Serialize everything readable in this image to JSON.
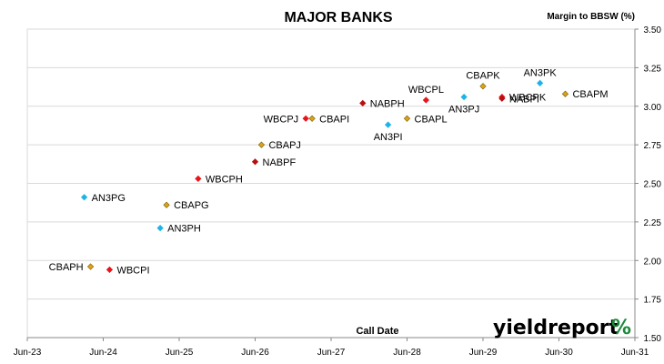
{
  "brand": {
    "name": "yieldreport",
    "symbol": "%"
  },
  "colors": {
    "ANZ": "#1cb4e8",
    "CBA": "#d9a31a",
    "NAB": "#b80f0f",
    "WBC": "#e8141a",
    "gridline": "#d9d9d9",
    "brand_green": "#1a8a3a",
    "brand_red": "#d8202a"
  },
  "chart_data": {
    "type": "scatter",
    "title": "MAJOR BANKS",
    "ylabel": "Margin to BBSW (%)",
    "xlabel": "Call Date",
    "ylim": [
      1.5,
      3.5
    ],
    "yticks": [
      "1.50",
      "1.75",
      "2.00",
      "2.25",
      "2.50",
      "2.75",
      "3.00",
      "3.25",
      "3.50"
    ],
    "xticks": [
      "Jun-23",
      "Jun-24",
      "Jun-25",
      "Jun-26",
      "Jun-27",
      "Jun-28",
      "Jun-29",
      "Jun-30",
      "Jun-31"
    ],
    "xlim": [
      "Jun-23",
      "Jun-31"
    ],
    "grid": "horizontal",
    "y_axis_position": "right",
    "points": [
      {
        "label": "AN3PG",
        "issuer": "ANZ",
        "x": "2024-03",
        "y": 2.41
      },
      {
        "label": "AN3PH",
        "issuer": "ANZ",
        "x": "2025-03",
        "y": 2.21
      },
      {
        "label": "AN3PI",
        "issuer": "ANZ",
        "x": "2028-03",
        "y": 2.88
      },
      {
        "label": "AN3PJ",
        "issuer": "ANZ",
        "x": "2029-03",
        "y": 3.06
      },
      {
        "label": "AN3PK",
        "issuer": "ANZ",
        "x": "2030-03",
        "y": 3.15
      },
      {
        "label": "CBAPH",
        "issuer": "CBA",
        "x": "2024-04",
        "y": 1.96
      },
      {
        "label": "CBAPG",
        "issuer": "CBA",
        "x": "2025-04",
        "y": 2.36
      },
      {
        "label": "CBAPJ",
        "issuer": "CBA",
        "x": "2026-07",
        "y": 2.75
      },
      {
        "label": "CBAPI",
        "issuer": "CBA",
        "x": "2027-03",
        "y": 2.92
      },
      {
        "label": "CBAPL",
        "issuer": "CBA",
        "x": "2028-06",
        "y": 2.92
      },
      {
        "label": "CBAPK",
        "issuer": "CBA",
        "x": "2029-06",
        "y": 3.13
      },
      {
        "label": "CBAPM",
        "issuer": "CBA",
        "x": "2030-07",
        "y": 3.08
      },
      {
        "label": "WBCPI",
        "issuer": "WBC",
        "x": "2024-07",
        "y": 1.94
      },
      {
        "label": "WBCPH",
        "issuer": "WBC",
        "x": "2025-09",
        "y": 2.53
      },
      {
        "label": "WBCPJ",
        "issuer": "WBC",
        "x": "2027-02",
        "y": 2.92
      },
      {
        "label": "WBCPL",
        "issuer": "WBC",
        "x": "2028-09",
        "y": 3.04
      },
      {
        "label": "WBCPK",
        "issuer": "WBC",
        "x": "2029-09",
        "y": 3.06
      },
      {
        "label": "NABPF",
        "issuer": "NAB",
        "x": "2026-06",
        "y": 2.64
      },
      {
        "label": "NABPH",
        "issuer": "NAB",
        "x": "2027-11",
        "y": 3.02
      },
      {
        "label": "NABPI",
        "issuer": "NAB",
        "x": "2029-09",
        "y": 3.05
      }
    ]
  }
}
